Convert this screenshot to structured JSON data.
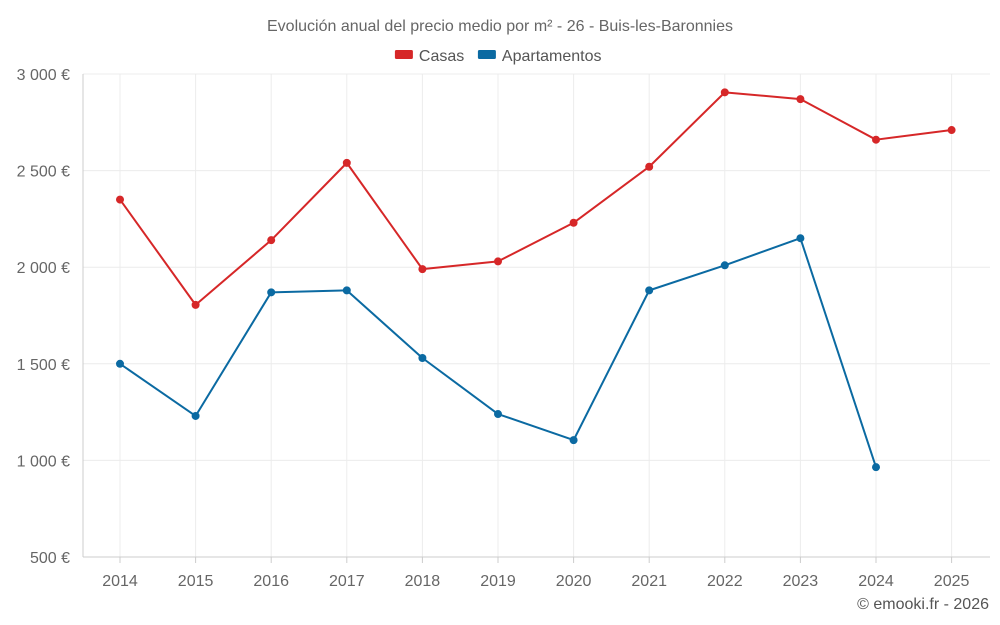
{
  "chart_data": {
    "type": "line",
    "title": "Evolución anual del precio medio por m² - 26 - Buis-les-Baronnies",
    "xlabel": "",
    "ylabel": "",
    "categories": [
      "2014",
      "2015",
      "2016",
      "2017",
      "2018",
      "2019",
      "2020",
      "2021",
      "2022",
      "2023",
      "2024",
      "2025"
    ],
    "ylim": [
      500,
      3000
    ],
    "yticks": [
      500,
      1000,
      1500,
      2000,
      2500,
      3000
    ],
    "ytick_labels": [
      "500 €",
      "1 000 €",
      "1 500 €",
      "2 000 €",
      "2 500 €",
      "3 000 €"
    ],
    "grid": true,
    "legend_position": "top-center",
    "series": [
      {
        "name": "Casas",
        "color": "#d62728",
        "values": [
          2350,
          1805,
          2140,
          2540,
          1990,
          2030,
          2230,
          2520,
          2905,
          2870,
          2660,
          2710
        ]
      },
      {
        "name": "Apartamentos",
        "color": "#0b6aa2",
        "values": [
          1500,
          1230,
          1870,
          1880,
          1530,
          1240,
          1105,
          1880,
          2010,
          2150,
          965,
          null
        ]
      }
    ]
  },
  "credit": "© emooki.fr - 2026"
}
